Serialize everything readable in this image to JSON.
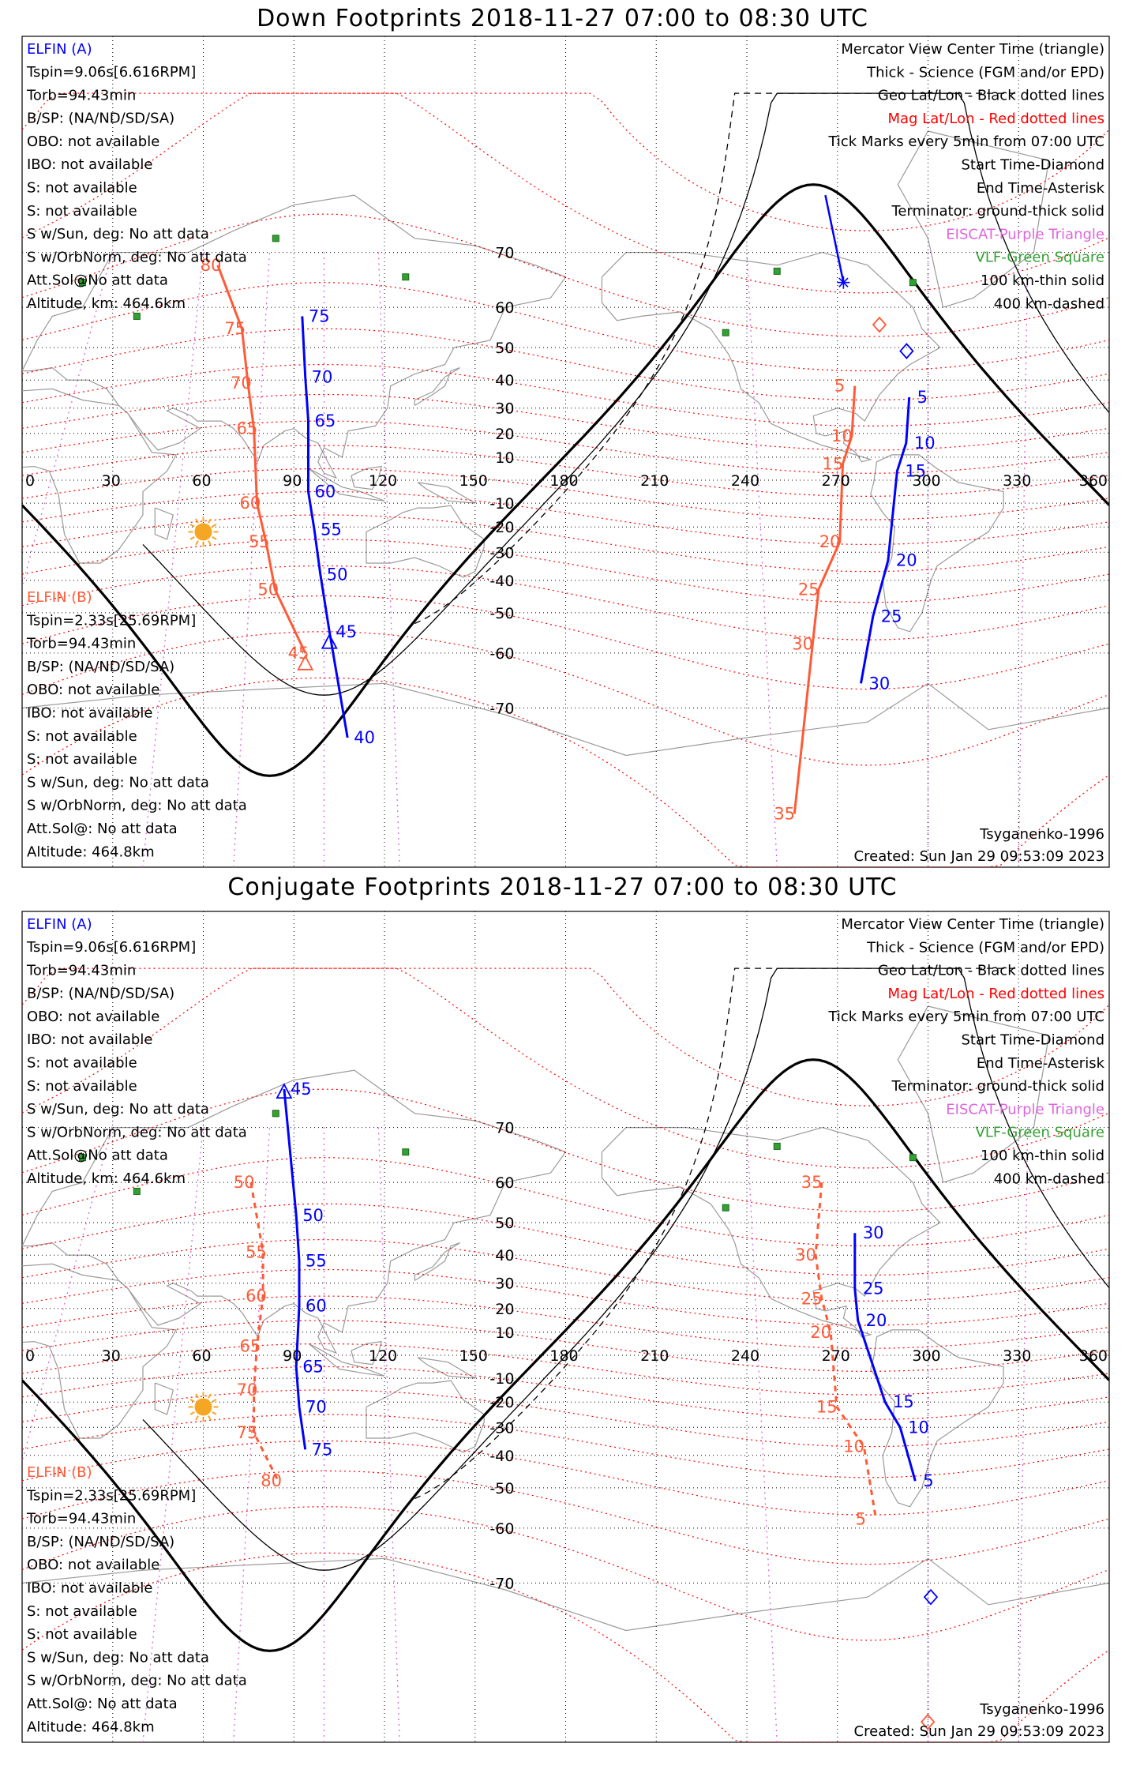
{
  "colors": {
    "elfin_a": "#0000ff",
    "elfin_b": "#ff5a36",
    "mag_grid": "#ff0000",
    "geo_grid": "#000000",
    "eiscat": "#dd66dd",
    "vlf": "#33a033",
    "sun": "#f5a623",
    "coast": "#9a9a9a"
  },
  "icons": {
    "start_marker": "diamond-icon",
    "end_marker": "asterisk-icon",
    "center_marker": "triangle-icon",
    "sun": "sun-icon",
    "vlf": "green-square-icon"
  },
  "axes": {
    "longitudes": [
      "0",
      "30",
      "60",
      "90",
      "120",
      "150",
      "180",
      "210",
      "240",
      "270",
      "300",
      "330",
      "360"
    ],
    "latitudes": [
      "70",
      "60",
      "50",
      "40",
      "30",
      "20",
      "10",
      "-10",
      "-20",
      "-30",
      "-40",
      "-50",
      "-60",
      "-70"
    ]
  },
  "legend": [
    "Mercator View Center Time (triangle)",
    "Thick - Science (FGM and/or EPD)",
    "Geo Lat/Lon - Black dotted lines",
    "Mag Lat/Lon - Red dotted lines",
    "Tick Marks every 5min from 07:00 UTC",
    "Start Time-Diamond",
    "End Time-Asterisk",
    "Terminator: ground-thick solid",
    "EISCAT-Purple Triangle",
    "VLF-Green Square",
    "100 km-thin solid",
    "400 km-dashed"
  ],
  "elfin_a": {
    "name": "ELFIN (A)",
    "lines": [
      "Tspin=9.06s[6.616RPM]",
      "Torb=94.43min",
      "B/SP: (NA/ND/SD/SA)",
      "OBO: not available",
      "IBO: not available",
      "S: not available",
      "S: not available",
      "S w/Sun, deg: No att data",
      "S w/OrbNorm, deg: No att data",
      "Att.Sol@No att data",
      "Altitude, km: 464.6km"
    ]
  },
  "elfin_b": {
    "name": "ELFIN (B)",
    "lines": [
      "Tspin=2.33s[25.69RPM]",
      "Torb=94.43min",
      "B/SP: (NA/ND/SD/SA)",
      "OBO: not available",
      "IBO: not available",
      "S: not available",
      "S: not available",
      "S w/Sun, deg: No att data",
      "S w/OrbNorm, deg: No att data",
      "Att.Sol@: No att data",
      "Altitude: 464.8km"
    ]
  },
  "model": "Tsyganenko-1996",
  "created": "Created: Sun Jan 29 09:53:09 2023",
  "panels": [
    {
      "title": "Down Footprints 2018-11-27 07:00 to 08:30 UTC",
      "b_dashed": false,
      "a_west_ticks": [
        {
          "t": "75",
          "lon": 98,
          "lat": 58
        },
        {
          "t": "70",
          "lon": 99,
          "lat": 41
        },
        {
          "t": "65",
          "lon": 100,
          "lat": 25
        },
        {
          "t": "60",
          "lon": 100,
          "lat": -5
        },
        {
          "t": "55",
          "lon": 102,
          "lat": -21
        },
        {
          "t": "50",
          "lon": 104,
          "lat": -38
        },
        {
          "t": "45",
          "lon": 107,
          "lat": -55
        },
        {
          "t": "40",
          "lon": 113,
          "lat": -74
        }
      ],
      "b_west_ticks": [
        {
          "t": "80",
          "lon": 70,
          "lat": 68
        },
        {
          "t": "75",
          "lon": 78,
          "lat": 55
        },
        {
          "t": "70",
          "lon": 80,
          "lat": 39
        },
        {
          "t": "65",
          "lon": 82,
          "lat": 22
        },
        {
          "t": "60",
          "lon": 83,
          "lat": -10
        },
        {
          "t": "55",
          "lon": 86,
          "lat": -26
        },
        {
          "t": "50",
          "lon": 89,
          "lat": -43
        },
        {
          "t": "45",
          "lon": 99,
          "lat": -60
        }
      ],
      "a_east_ticks": [
        {
          "t": "5",
          "lon": 299,
          "lat": 34
        },
        {
          "t": "10",
          "lon": 298,
          "lat": 16
        },
        {
          "t": "15",
          "lon": 295,
          "lat": 4
        },
        {
          "t": "20",
          "lon": 292,
          "lat": -33
        },
        {
          "t": "25",
          "lon": 287,
          "lat": -51
        },
        {
          "t": "30",
          "lon": 283,
          "lat": -66
        }
      ],
      "b_east_ticks": [
        {
          "t": "5",
          "lon": 281,
          "lat": 38
        },
        {
          "t": "10",
          "lon": 280,
          "lat": 19
        },
        {
          "t": "15",
          "lon": 277,
          "lat": 7
        },
        {
          "t": "20",
          "lon": 276,
          "lat": -26
        },
        {
          "t": "25",
          "lon": 269,
          "lat": -43
        },
        {
          "t": "30",
          "lon": 267,
          "lat": -58
        },
        {
          "t": "35",
          "lon": 261,
          "lat": -81
        }
      ]
    },
    {
      "title": "Conjugate Footprints 2018-11-27 07:00 to 08:30 UTC",
      "b_dashed": true,
      "a_west_ticks": [
        {
          "t": "45",
          "lon": 92,
          "lat": 75
        },
        {
          "t": "50",
          "lon": 96,
          "lat": 52
        },
        {
          "t": "55",
          "lon": 97,
          "lat": 38
        },
        {
          "t": "60",
          "lon": 97,
          "lat": 21
        },
        {
          "t": "65",
          "lon": 96,
          "lat": -5
        },
        {
          "t": "70",
          "lon": 97,
          "lat": -22
        },
        {
          "t": "75",
          "lon": 99,
          "lat": -38
        }
      ],
      "b_west_ticks": [
        {
          "t": "50",
          "lon": 81,
          "lat": 60
        },
        {
          "t": "55",
          "lon": 85,
          "lat": 41
        },
        {
          "t": "60",
          "lon": 85,
          "lat": 25
        },
        {
          "t": "65",
          "lon": 83,
          "lat": 4
        },
        {
          "t": "70",
          "lon": 82,
          "lat": -15
        },
        {
          "t": "75",
          "lon": 82,
          "lat": -32
        },
        {
          "t": "80",
          "lon": 90,
          "lat": -48
        }
      ],
      "a_east_ticks": [
        {
          "t": "30",
          "lon": 281,
          "lat": 47
        },
        {
          "t": "25",
          "lon": 281,
          "lat": 28
        },
        {
          "t": "20",
          "lon": 282,
          "lat": 15
        },
        {
          "t": "15",
          "lon": 291,
          "lat": -20
        },
        {
          "t": "10",
          "lon": 296,
          "lat": -30
        },
        {
          "t": "5",
          "lon": 301,
          "lat": -48
        }
      ],
      "b_east_ticks": [
        {
          "t": "35",
          "lon": 270,
          "lat": 60
        },
        {
          "t": "30",
          "lon": 268,
          "lat": 40
        },
        {
          "t": "25",
          "lon": 270,
          "lat": 24
        },
        {
          "t": "20",
          "lon": 273,
          "lat": 10
        },
        {
          "t": "15",
          "lon": 275,
          "lat": -22
        },
        {
          "t": "10",
          "lon": 284,
          "lat": -37
        },
        {
          "t": "5",
          "lon": 288,
          "lat": -58
        }
      ]
    }
  ]
}
